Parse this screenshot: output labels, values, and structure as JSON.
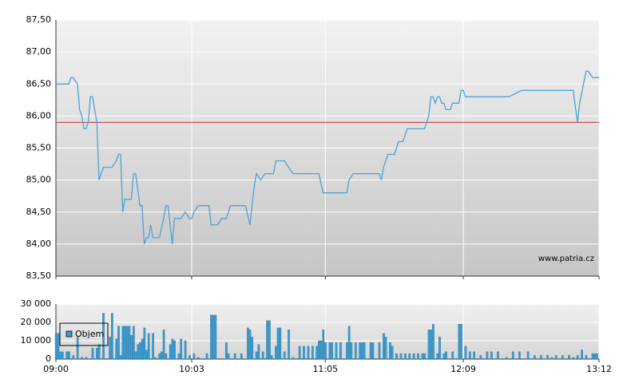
{
  "chart_data": [
    {
      "type": "line",
      "color": "#4ba3d6",
      "x": [
        0,
        6,
        7,
        8,
        10,
        11,
        12,
        13,
        14,
        15,
        16,
        17,
        19,
        20,
        21,
        22,
        26,
        28,
        29,
        30,
        31,
        32,
        35,
        36,
        37,
        39,
        40,
        41,
        42,
        43,
        44,
        45,
        48,
        50,
        51,
        52,
        54,
        55,
        58,
        60,
        62,
        63,
        64,
        66,
        71,
        72,
        75,
        77,
        79,
        81,
        88,
        90,
        92,
        93,
        95,
        97,
        101,
        102,
        106,
        110,
        122,
        124,
        135,
        136,
        138,
        150,
        151,
        152,
        154,
        157,
        159,
        161,
        163,
        171,
        173,
        174,
        175,
        176,
        177,
        178,
        179,
        180,
        181,
        183,
        184,
        187,
        188,
        189,
        190,
        210,
        216,
        240,
        242,
        243,
        246,
        247,
        249,
        252
      ],
      "values": [
        86.5,
        86.5,
        86.6,
        86.6,
        86.5,
        86.1,
        86.0,
        85.8,
        85.8,
        85.9,
        86.3,
        86.3,
        85.9,
        85.0,
        85.1,
        85.2,
        85.2,
        85.3,
        85.4,
        85.4,
        84.5,
        84.7,
        84.7,
        85.1,
        85.1,
        84.6,
        84.6,
        84.0,
        84.1,
        84.1,
        84.3,
        84.1,
        84.1,
        84.4,
        84.6,
        84.6,
        84.0,
        84.4,
        84.4,
        84.5,
        84.4,
        84.4,
        84.5,
        84.6,
        84.6,
        84.3,
        84.3,
        84.4,
        84.4,
        84.6,
        84.6,
        84.3,
        84.9,
        85.1,
        85.0,
        85.1,
        85.1,
        85.3,
        85.3,
        85.1,
        85.1,
        84.8,
        84.8,
        85.0,
        85.1,
        85.1,
        85.0,
        85.2,
        85.4,
        85.4,
        85.6,
        85.6,
        85.8,
        85.8,
        86.0,
        86.3,
        86.3,
        86.2,
        86.3,
        86.3,
        86.2,
        86.2,
        86.1,
        86.1,
        86.2,
        86.2,
        86.4,
        86.4,
        86.3,
        86.3,
        86.4,
        86.4,
        85.9,
        86.2,
        86.7,
        86.7,
        86.6,
        86.6
      ],
      "reference_line": 85.9,
      "reference_color": "#c0303a",
      "annotation": "www.patria.cz",
      "xlim": [
        0,
        252
      ],
      "xticks": [
        0,
        63,
        125,
        189,
        252
      ],
      "ylim": [
        83.5,
        87.5
      ],
      "yticks": [
        {
          "value": 83.5,
          "label": "83,50"
        },
        {
          "value": 84,
          "label": "84,00"
        },
        {
          "value": 84.5,
          "label": "84,50"
        },
        {
          "value": 85,
          "label": "85,00"
        },
        {
          "value": 85.5,
          "label": "85,50"
        },
        {
          "value": 86,
          "label": "86,00"
        },
        {
          "value": 86.5,
          "label": "86,50"
        },
        {
          "value": 87,
          "label": "87,00"
        },
        {
          "value": 87.5,
          "label": "87,50"
        }
      ],
      "grid": true
    },
    {
      "type": "bar",
      "legend": "upper left",
      "x": [
        0,
        1,
        2,
        3,
        5,
        6,
        8,
        10,
        12,
        14,
        17,
        19,
        20,
        22,
        25,
        26,
        28,
        29,
        30,
        31,
        32,
        33,
        34,
        35,
        36,
        37,
        38,
        39,
        40,
        41,
        42,
        43,
        45,
        46,
        48,
        49,
        50,
        51,
        53,
        54,
        55,
        57,
        58,
        60,
        62,
        64,
        66,
        70,
        72,
        73,
        74,
        79,
        80,
        83,
        86,
        89,
        90,
        91,
        93,
        94,
        96,
        98,
        99,
        100,
        102,
        103,
        104,
        106,
        108,
        110,
        113,
        115,
        117,
        119,
        121,
        122,
        123,
        124,
        125,
        127,
        128,
        130,
        132,
        135,
        136,
        137,
        139,
        141,
        142,
        143,
        146,
        147,
        150,
        152,
        153,
        155,
        156,
        158,
        160,
        162,
        164,
        166,
        168,
        170,
        171,
        173,
        174,
        175,
        177,
        178,
        180,
        181,
        184,
        187,
        188,
        190,
        192,
        194,
        197,
        200,
        202,
        205,
        209,
        212,
        215,
        219,
        222,
        225,
        228,
        230,
        232,
        235,
        238,
        240,
        242,
        244,
        246,
        249,
        250,
        251
      ],
      "series": [
        {
          "name": "Objem",
          "color": "#3a9ccf",
          "values": [
            14000,
            14000,
            4000,
            4000,
            4000,
            4000,
            2000,
            12000,
            1000,
            1000,
            6000,
            6000,
            8000,
            25000,
            12000,
            25000,
            11000,
            18000,
            2000,
            18000,
            18000,
            18000,
            18000,
            13000,
            18000,
            4000,
            8000,
            9000,
            11000,
            17000,
            5000,
            14000,
            14000,
            1000,
            3000,
            4000,
            16000,
            3000,
            8000,
            11000,
            10000,
            3000,
            11000,
            10000,
            2000,
            3000,
            1000,
            3000,
            24000,
            24000,
            24000,
            9000,
            3000,
            3000,
            3000,
            17000,
            16000,
            12000,
            4000,
            8000,
            4000,
            21000,
            21000,
            2000,
            7000,
            17000,
            17000,
            4000,
            16000,
            1000,
            7000,
            7000,
            7000,
            7000,
            7000,
            10000,
            10000,
            16000,
            9000,
            9000,
            9000,
            9000,
            9000,
            9000,
            18000,
            9000,
            9000,
            9000,
            9000,
            9000,
            9000,
            9000,
            9000,
            14000,
            12000,
            9000,
            7000,
            3000,
            3000,
            3000,
            3000,
            3000,
            3000,
            3000,
            3000,
            16000,
            16000,
            19000,
            3000,
            12000,
            3000,
            4000,
            4000,
            19000,
            19000,
            7000,
            4000,
            4000,
            2000,
            4000,
            4000,
            4000,
            1000,
            4000,
            4000,
            4000,
            2000,
            2000,
            2000,
            1000,
            2000,
            2000,
            2000,
            1000,
            2000,
            5000,
            2000,
            3000,
            3000,
            3000
          ]
        }
      ],
      "xlim": [
        0,
        252
      ],
      "xticks": [
        {
          "value": 0,
          "label": "09:00"
        },
        {
          "value": 63,
          "label": "10:03"
        },
        {
          "value": 125,
          "label": "11:05"
        },
        {
          "value": 189,
          "label": "12:09"
        },
        {
          "value": 252,
          "label": "13:12"
        }
      ],
      "ylim": [
        0,
        30000
      ],
      "yticks": [
        0,
        {
          "value": 10000,
          "label": "10 000"
        },
        {
          "value": 20000,
          "label": "20 000"
        },
        {
          "value": 30000,
          "label": "30 000"
        }
      ],
      "grid": true
    }
  ]
}
